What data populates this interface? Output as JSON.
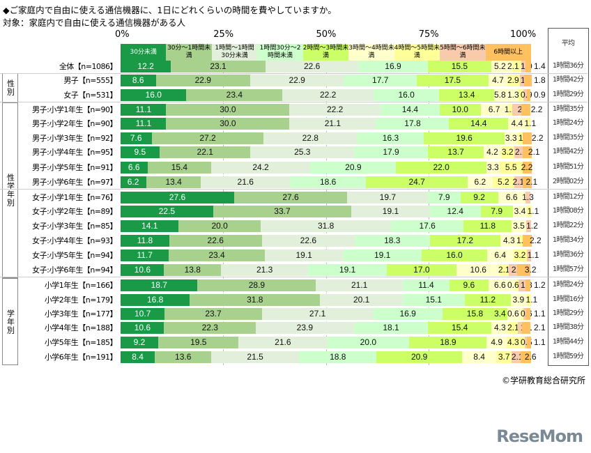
{
  "title": "◆ご家庭内で自由に使える通信機器に、1日にどれくらいの時間を費やしていますか。",
  "subtitle": "対象：家庭内で自由に使える通信機器がある人",
  "copyright": "©学研教育総合研究所",
  "logo": "ReseMom",
  "avg_header": "平均",
  "groups": [
    "性別",
    "性学年別",
    "学年別"
  ],
  "chart_data": {
    "type": "bar",
    "orientation": "horizontal",
    "stacked": true,
    "xlim": [
      0,
      100
    ],
    "x_ticks": [
      "0%",
      "25%",
      "50%",
      "75%",
      "100%"
    ],
    "legend_placement": "top",
    "series_names": [
      "30分未満",
      "30分～1時間未満",
      "1時間～1時間30分未満",
      "1時間30分～2時間未満",
      "2時間～3時間未満",
      "3時間～4時間未満",
      "4時間～5時間未満",
      "5時間～6時間未満",
      "6時間以上"
    ],
    "colors": [
      "#1a9a46",
      "#a9d18e",
      "#e2efda",
      "#ccffcc",
      "#ccff66",
      "#ffffcc",
      "#ffff99",
      "#f8cbad",
      "#ffc060"
    ],
    "categories": [
      "全体【n=1086】",
      "男子【n=555】",
      "女子【n=531】",
      "男子:小学1年生【n=90】",
      "男子:小学2年生【n=90】",
      "男子:小学3年生【n=92】",
      "男子:小学4年生【n=95】",
      "男子:小学5年生【n=91】",
      "男子:小学6年生【n=97】",
      "女子:小学1年生【n=76】",
      "女子:小学2年生【n=89】",
      "女子:小学3年生【n=85】",
      "女子:小学4年生【n=93】",
      "女子:小学5年生【n=94】",
      "女子:小学6年生【n=94】",
      "小学1年生【n=166】",
      "小学2年生【n=179】",
      "小学3年生【n=177】",
      "小学4年生【n=188】",
      "小学5年生【n=185】",
      "小学6年生【n=191】"
    ],
    "values": [
      [
        12.2,
        23.1,
        22.6,
        16.9,
        15.5,
        5.2,
        2.1,
        1.0,
        1.4
      ],
      [
        8.6,
        22.9,
        22.9,
        17.7,
        17.5,
        4.7,
        2.9,
        1.1,
        1.8
      ],
      [
        16.0,
        23.4,
        22.2,
        16.0,
        13.4,
        5.8,
        1.3,
        0.9,
        0.9
      ],
      [
        11.1,
        30.0,
        22.2,
        14.4,
        10.0,
        6.7,
        1.1,
        2.2,
        2.2
      ],
      [
        11.1,
        30.0,
        21.1,
        17.8,
        14.4,
        4.4,
        1.1,
        0,
        0
      ],
      [
        7.6,
        27.2,
        22.8,
        16.3,
        19.6,
        3.3,
        1.1,
        0,
        2.2
      ],
      [
        9.5,
        22.1,
        25.3,
        17.9,
        13.7,
        4.2,
        3.2,
        2.1,
        2.1
      ],
      [
        6.6,
        15.4,
        24.2,
        20.9,
        22.0,
        3.3,
        5.5,
        0,
        2.2
      ],
      [
        6.2,
        13.4,
        21.6,
        18.6,
        24.7,
        6.2,
        5.2,
        2.1,
        2.1
      ],
      [
        27.6,
        27.6,
        19.7,
        7.9,
        9.2,
        6.6,
        0,
        1.3,
        0
      ],
      [
        22.5,
        33.7,
        19.1,
        12.4,
        7.9,
        3.4,
        1.1,
        0,
        0
      ],
      [
        14.1,
        20.0,
        31.8,
        17.6,
        11.8,
        3.5,
        0,
        1.2,
        0
      ],
      [
        11.8,
        22.6,
        22.6,
        18.3,
        17.2,
        4.3,
        1.1,
        0,
        2.2
      ],
      [
        11.7,
        23.4,
        19.1,
        19.1,
        16.0,
        6.4,
        3.2,
        1.1,
        0
      ],
      [
        10.6,
        13.8,
        21.3,
        19.1,
        17.0,
        10.6,
        2.1,
        2.1,
        3.2
      ],
      [
        18.7,
        28.9,
        21.1,
        11.4,
        9.6,
        6.6,
        0.6,
        1.8,
        1.2
      ],
      [
        16.8,
        31.8,
        20.1,
        15.1,
        11.2,
        3.9,
        1.1,
        0,
        0
      ],
      [
        10.7,
        23.7,
        27.1,
        16.9,
        15.8,
        3.4,
        0.6,
        0.6,
        1.1
      ],
      [
        10.6,
        22.3,
        23.9,
        18.1,
        15.4,
        4.3,
        2.1,
        1.1,
        2.1
      ],
      [
        9.2,
        19.5,
        21.6,
        20.0,
        18.9,
        4.9,
        4.3,
        0.5,
        1.1
      ],
      [
        8.4,
        13.6,
        21.5,
        18.8,
        20.9,
        8.4,
        3.7,
        2.1,
        2.6
      ]
    ],
    "averages": [
      "1時間36分",
      "1時間42分",
      "1時間29分",
      "1時間35分",
      "1時間24分",
      "1時間35分",
      "1時間42分",
      "1時間51分",
      "2時間02分",
      "1時間12分",
      "1時間08分",
      "1時間22分",
      "1時間34分",
      "1時間36分",
      "1時間57分",
      "1時間24分",
      "1時間16分",
      "1時間29分",
      "1時間38分",
      "1時間44分",
      "1時間59分"
    ]
  }
}
